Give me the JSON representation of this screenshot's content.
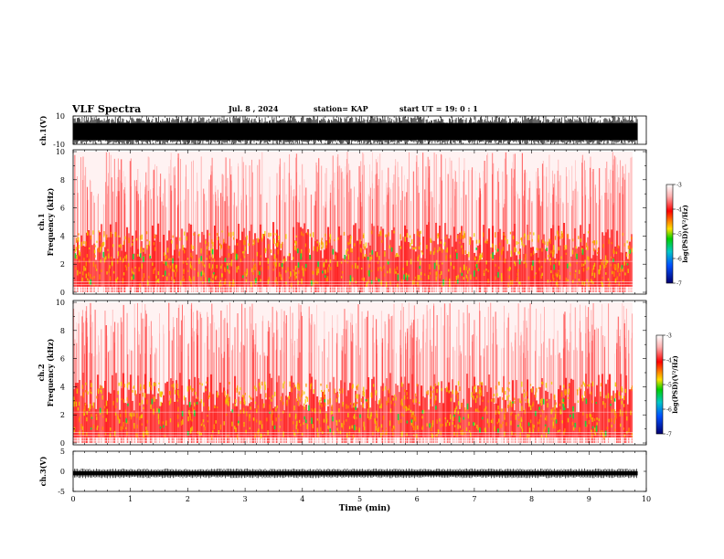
{
  "header": {
    "title": "VLF Spectra",
    "date": "Jul. 8 , 2024",
    "station": "station= KAP",
    "start": "start UT =  19: 0 : 1"
  },
  "chart_data": [
    {
      "type": "line",
      "name": "ch1-waveform",
      "ylabel": "ch.1(V)",
      "ylim": [
        -10,
        10
      ],
      "yticks": [
        "10",
        "-10"
      ],
      "xlim": [
        0,
        10
      ],
      "data_end_min": 9.85
    },
    {
      "type": "heatmap",
      "name": "ch1-spectrogram",
      "ylabel": "ch.1\nFrequency (kHz)",
      "ylim": [
        0,
        10
      ],
      "yticks": [
        "0",
        "2",
        "4",
        "6",
        "8",
        "10"
      ],
      "xlim": [
        0,
        10
      ],
      "data_end_min": 9.85,
      "colorbar": {
        "label": "log(PSD)(V²/Hz)",
        "range": [
          -7,
          -3
        ],
        "ticks": [
          "-3",
          "-4",
          "-5",
          "-6",
          "-7"
        ]
      }
    },
    {
      "type": "heatmap",
      "name": "ch2-spectrogram",
      "ylabel": "ch.2\nFrequency (kHz)",
      "ylim": [
        0,
        10
      ],
      "yticks": [
        "0",
        "2",
        "4",
        "6",
        "8",
        "10"
      ],
      "xlim": [
        0,
        10
      ],
      "data_end_min": 9.85,
      "colorbar": {
        "label": "log(PSD)(V²/Hz)",
        "range": [
          -7,
          -3
        ],
        "ticks": [
          "-3",
          "-4",
          "-5",
          "-6",
          "-7"
        ]
      }
    },
    {
      "type": "line",
      "name": "ch3-waveform",
      "ylabel": "ch.3(V)",
      "ylim": [
        -5,
        5
      ],
      "yticks": [
        "5",
        "0",
        "-5"
      ],
      "xlim": [
        0,
        10
      ],
      "data_end_min": 9.85,
      "level_v": [
        -1,
        0
      ]
    }
  ],
  "xaxis": {
    "label": "Time (min)",
    "ticks": [
      "0",
      "1",
      "2",
      "3",
      "4",
      "5",
      "6",
      "7",
      "8",
      "9",
      "10"
    ]
  },
  "colors": {
    "spectrum_low": "#ffffff",
    "spectrum_mid": "#ff2a2a",
    "spectrum_high": "#f0d000",
    "spectrum_peak": "#20d040",
    "trace": "#000000"
  }
}
